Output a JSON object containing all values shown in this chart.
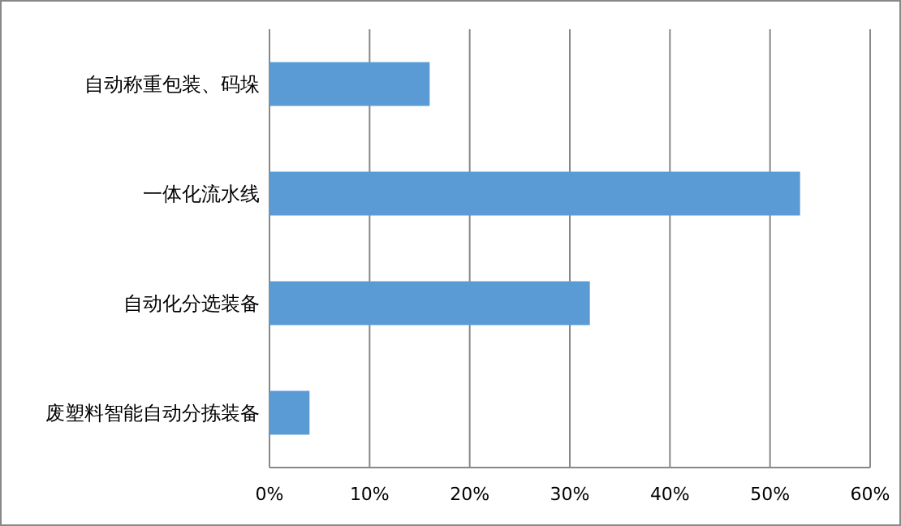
{
  "chart_data": {
    "type": "bar",
    "orientation": "horizontal",
    "categories": [
      "自动称重包装、码垛",
      "一体化流水线",
      "自动化分选装备",
      "废塑料智能自动分拣装备"
    ],
    "values": [
      16,
      53,
      32,
      4
    ],
    "color": "#5b9bd5",
    "xlim": [
      0,
      60
    ],
    "xticks": [
      {
        "value": 0,
        "label": "0%"
      },
      {
        "value": 10,
        "label": "10%"
      },
      {
        "value": 20,
        "label": "20%"
      },
      {
        "value": 30,
        "label": "30%"
      },
      {
        "value": 40,
        "label": "40%"
      },
      {
        "value": 50,
        "label": "50%"
      },
      {
        "value": 60,
        "label": "60%"
      }
    ],
    "grid": "x"
  }
}
